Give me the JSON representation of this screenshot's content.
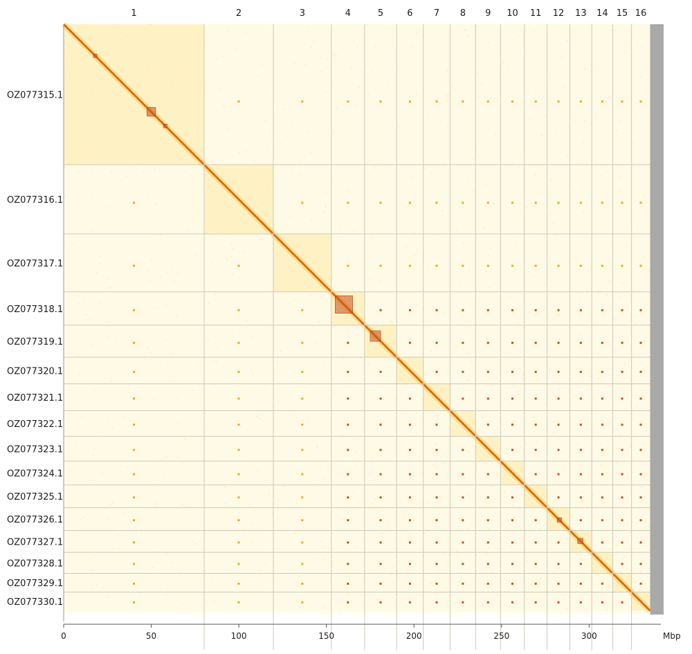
{
  "chart_data": {
    "type": "heatmap",
    "title": "",
    "xlabel": "",
    "ylabel": "",
    "x_unit": "Mbp",
    "xlim": [
      0,
      337
    ],
    "ylim": [
      0,
      337
    ],
    "x_ticks": [
      0,
      50,
      100,
      150,
      200,
      250,
      300
    ],
    "x_tick_labels": [
      "0",
      "50",
      "100",
      "150",
      "200",
      "250",
      "300"
    ],
    "top_labels": [
      "1",
      "2",
      "3",
      "4",
      "5",
      "6",
      "7",
      "8",
      "9",
      "10",
      "11",
      "12",
      "13",
      "14",
      "15",
      "16"
    ],
    "row_labels": [
      "OZ077315.1",
      "OZ077316.1",
      "OZ077317.1",
      "OZ077318.1",
      "OZ077319.1",
      "OZ077320.1",
      "OZ077321.1",
      "OZ077322.1",
      "OZ077323.1",
      "OZ077324.1",
      "OZ077325.1",
      "OZ077326.1",
      "OZ077327.1",
      "OZ077328.1",
      "OZ077329.1",
      "OZ077330.1"
    ],
    "chromosome_boundaries_mbp": [
      0,
      80.2,
      119.7,
      152.8,
      171.8,
      190.1,
      205.3,
      220.6,
      235.2,
      249.4,
      263.0,
      276.0,
      289.0,
      301.5,
      313.5,
      324.2,
      334.8
    ],
    "genome_end_mbp": 337,
    "colors": {
      "background": "#fffdf2",
      "low": "#fff0b8",
      "mid": "#f6a522",
      "high": "#c8501a",
      "peak": "#8a2a10",
      "grid": "#c9c9b8",
      "unplaced": "#a9a9a9"
    }
  }
}
